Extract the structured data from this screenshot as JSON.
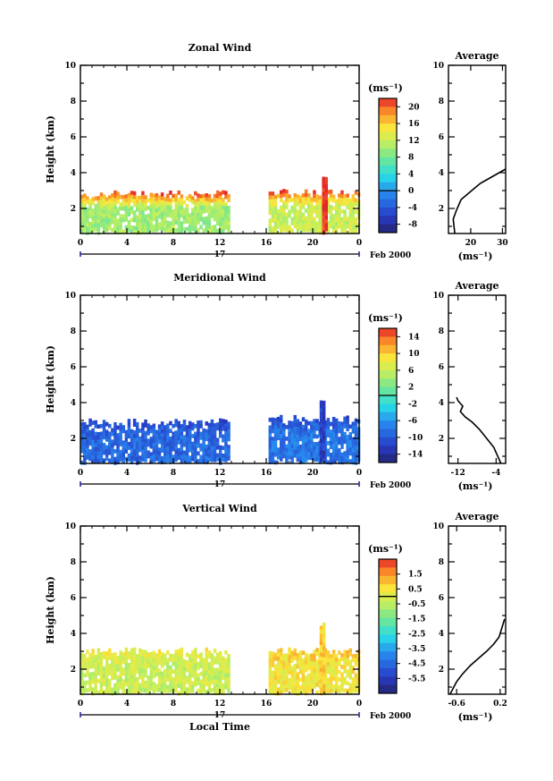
{
  "chart_data": [
    {
      "type": "heatmap",
      "title": "Zonal Wind",
      "ylabel": "Height (km)",
      "xticks": [
        "0",
        "4",
        "8",
        "12",
        "16",
        "20",
        "0"
      ],
      "yticks": [
        "2",
        "4",
        "6",
        "8",
        "10"
      ],
      "xlim": [
        0,
        24
      ],
      "ylim": [
        0.6,
        10
      ],
      "date_label": "17",
      "month_label": "Feb 2000",
      "colorbar": {
        "unit": "(ms⁻¹)",
        "ticks": [
          "20",
          "16",
          "12",
          "8",
          "4",
          "0",
          "-4",
          "-8"
        ],
        "range": [
          -10,
          22
        ]
      },
      "segments": [
        {
          "x": [
            0,
            12.7
          ],
          "top_km": 2.9,
          "values_mean_ms": 10,
          "values_top_ms": 20
        },
        {
          "x": [
            16.2,
            24
          ],
          "top_km": 3.0,
          "values_mean_ms": 12,
          "values_top_ms": 20
        },
        {
          "x": [
            20.8,
            21.2
          ],
          "top_km": 3.8,
          "values_mean_ms": 22,
          "values_top_ms": 22
        }
      ],
      "average": {
        "title": "Average",
        "xticks": [
          "20",
          "30"
        ],
        "xlabel": "(ms⁻¹)",
        "xlim": [
          13,
          31
        ],
        "profile": [
          [
            15,
            0.6
          ],
          [
            14.5,
            1.4
          ],
          [
            15.5,
            1.9
          ],
          [
            17,
            2.5
          ],
          [
            19,
            2.8
          ],
          [
            21,
            3.1
          ],
          [
            23,
            3.4
          ],
          [
            25,
            3.6
          ],
          [
            27,
            3.8
          ],
          [
            29,
            4.0
          ],
          [
            31,
            4.2
          ]
        ]
      }
    },
    {
      "type": "heatmap",
      "title": "Meridional Wind",
      "ylabel": "Height (km)",
      "xticks": [
        "0",
        "4",
        "8",
        "12",
        "16",
        "20",
        "0"
      ],
      "yticks": [
        "2",
        "4",
        "6",
        "8",
        "10"
      ],
      "xlim": [
        0,
        24
      ],
      "ylim": [
        0.6,
        10
      ],
      "date_label": "17",
      "month_label": "Feb 2000",
      "colorbar": {
        "unit": "(ms⁻¹)",
        "ticks": [
          "14",
          "10",
          "6",
          "2",
          "-2",
          "-6",
          "-10",
          "-14"
        ],
        "range": [
          -16,
          16
        ]
      },
      "segments": [
        {
          "x": [
            0,
            12.7
          ],
          "top_km": 3.0,
          "values_mean_ms": -9,
          "values_top_ms": -11
        },
        {
          "x": [
            16.2,
            24
          ],
          "top_km": 3.2,
          "values_mean_ms": -8,
          "values_top_ms": -11
        },
        {
          "x": [
            20.6,
            20.9
          ],
          "top_km": 4.2,
          "values_mean_ms": -12,
          "values_top_ms": -12
        }
      ],
      "average": {
        "title": "Average",
        "xticks": [
          "-12",
          "-4"
        ],
        "xlabel": "(ms⁻¹)",
        "xlim": [
          -14,
          -2
        ],
        "profile": [
          [
            -3,
            0.6
          ],
          [
            -4.5,
            1.5
          ],
          [
            -6,
            2.0
          ],
          [
            -7.5,
            2.5
          ],
          [
            -9,
            2.9
          ],
          [
            -10.5,
            3.2
          ],
          [
            -11.5,
            3.5
          ],
          [
            -11,
            3.8
          ],
          [
            -12,
            4.1
          ],
          [
            -12.3,
            4.3
          ]
        ]
      }
    },
    {
      "type": "heatmap",
      "title": "Vertical Wind",
      "ylabel": "Height (km)",
      "xlabel": "Local Time",
      "xticks": [
        "0",
        "4",
        "8",
        "12",
        "16",
        "20",
        "0"
      ],
      "yticks": [
        "2",
        "4",
        "6",
        "8",
        "10"
      ],
      "xlim": [
        0,
        24
      ],
      "ylim": [
        0.6,
        10
      ],
      "date_label": "17",
      "month_label": "Feb 2000",
      "colorbar": {
        "unit": "(ms⁻¹)",
        "ticks": [
          "1.5",
          "0.5",
          "-0.5",
          "-1.5",
          "-2.5",
          "-3.5",
          "-4.5",
          "-5.5"
        ],
        "range": [
          -6.5,
          2.5
        ]
      },
      "segments": [
        {
          "x": [
            0,
            12.7
          ],
          "top_km": 3.1,
          "values_mean_ms": -0.3,
          "values_top_ms": 0.2
        },
        {
          "x": [
            16.2,
            24
          ],
          "top_km": 3.1,
          "values_mean_ms": 0.4,
          "values_top_ms": 0.8
        },
        {
          "x": [
            20.6,
            20.9
          ],
          "top_km": 4.6,
          "values_mean_ms": 0.8,
          "values_top_ms": 0.8
        }
      ],
      "average": {
        "title": "Average",
        "xticks": [
          "-0.6",
          "0.2"
        ],
        "xlabel": "(ms⁻¹)",
        "xlim": [
          -0.75,
          0.3
        ],
        "profile": [
          [
            -0.72,
            0.6
          ],
          [
            -0.6,
            1.3
          ],
          [
            -0.5,
            1.7
          ],
          [
            -0.35,
            2.2
          ],
          [
            -0.2,
            2.6
          ],
          [
            -0.05,
            3.0
          ],
          [
            0.08,
            3.4
          ],
          [
            0.18,
            3.8
          ],
          [
            0.22,
            4.2
          ],
          [
            0.28,
            4.8
          ]
        ]
      }
    }
  ]
}
